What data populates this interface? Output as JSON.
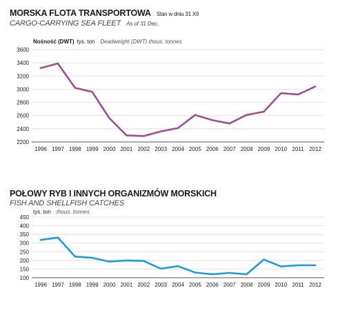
{
  "chart_data": [
    {
      "type": "line",
      "title": "MORSKA FLOTA TRANSPORTOWA",
      "title_note": "Stan w dniu 31 XII",
      "subtitle": "CARGO-CARRYING SEA FLEET",
      "subtitle_note": "As of 31 Dec.",
      "ylabel_pl": "Nośność (DWT)",
      "ylabel_pl_unit": "tys. ton",
      "ylabel_en": "Deadweight (DWT) thous. tonnes",
      "x": [
        "1996",
        "1997",
        "1998",
        "1999",
        "2000",
        "2001",
        "2002",
        "2003",
        "2004",
        "2005",
        "2006",
        "2007",
        "2008",
        "2009",
        "2010",
        "2011",
        "2012"
      ],
      "values": [
        3320,
        3390,
        3020,
        2960,
        2560,
        2300,
        2290,
        2360,
        2410,
        2610,
        2530,
        2480,
        2610,
        2660,
        2940,
        2920,
        3040
      ],
      "ylim": [
        2200,
        3600
      ],
      "yticks": [
        2200,
        2400,
        2600,
        2800,
        3000,
        3200,
        3400,
        3600
      ],
      "line_color": "#9b4f8e",
      "grid": "horizontal"
    },
    {
      "type": "line",
      "title": "POŁOWY RYB I INNYCH ORGANIZMÓW MORSKICH",
      "subtitle": "FISH AND SHELLFISH CATCHES",
      "ylabel_pl_unit": "tys. ton",
      "ylabel_en": "thous. tonnes",
      "x": [
        "1996",
        "1997",
        "1998",
        "1999",
        "2000",
        "2001",
        "2002",
        "2003",
        "2004",
        "2005",
        "2006",
        "2007",
        "2008",
        "2009",
        "2010",
        "2011",
        "2012"
      ],
      "values": [
        318,
        332,
        222,
        215,
        193,
        200,
        197,
        152,
        167,
        130,
        120,
        128,
        120,
        205,
        165,
        172,
        172
      ],
      "ylim": [
        100,
        450
      ],
      "yticks": [
        100,
        150,
        200,
        250,
        300,
        350,
        400,
        450
      ],
      "line_color": "#1f9ad6",
      "grid": "horizontal"
    }
  ]
}
